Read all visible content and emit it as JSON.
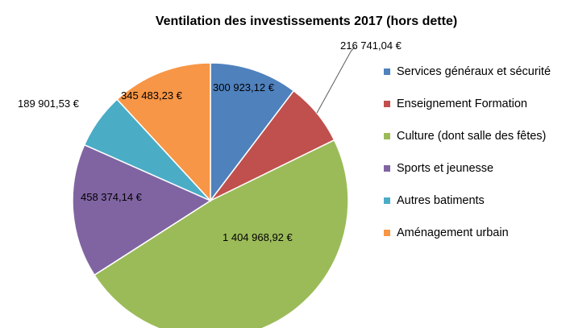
{
  "chart_data": {
    "type": "pie",
    "title": "Ventilation des investissements 2017 (hors dette)",
    "categories": [
      "Services généraux et sécurité",
      "Enseignement Formation",
      "Culture  (dont salle des fêtes)",
      "Sports et jeunesse",
      "Autres batiments",
      "Aménagement urbain"
    ],
    "values": [
      300923.12,
      216741.04,
      1404968.92,
      458374.14,
      189901.53,
      345483.23
    ],
    "value_labels": [
      "300 923,12 €",
      "216 741,04 €",
      "1 404 968,92 €",
      "458 374,14 €",
      "189 901,53 €",
      "345 483,23 €"
    ],
    "colors": [
      "#4f81bd",
      "#c0504d",
      "#9bbb59",
      "#8064a2",
      "#4bacc6",
      "#f79646"
    ],
    "legend": "right"
  }
}
